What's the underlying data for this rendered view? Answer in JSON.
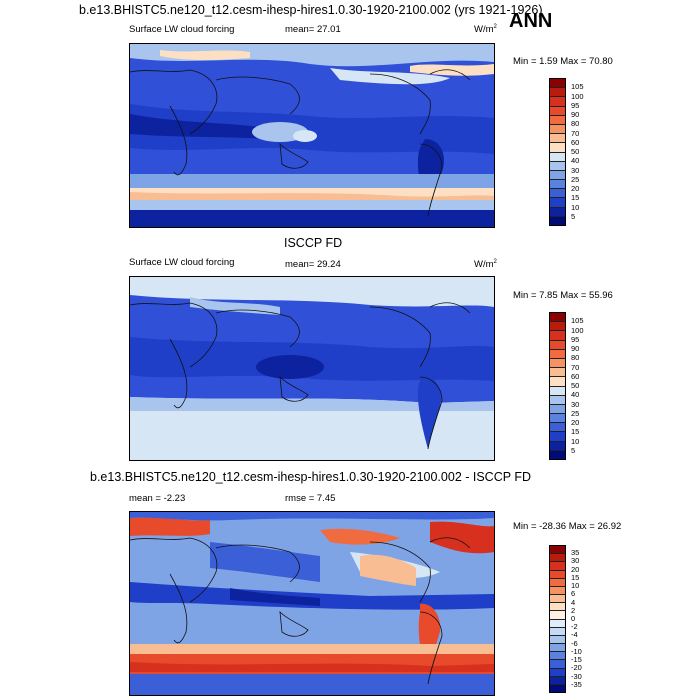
{
  "season": "ANN",
  "panels": [
    {
      "title": "b.e13.BHISTC5.ne120_t12.cesm-ihesp-hires1.0.30-1920-2100.002 (yrs 1921-1926)",
      "left": "Surface LW cloud forcing",
      "stat": "mean=  27.01",
      "units": "W/m",
      "units_sup": "2",
      "minmax": "Min =   1.59 Max =  70.80",
      "cbar_labels": [
        "105",
        "100",
        "95",
        "90",
        "80",
        "70",
        "60",
        "50",
        "40",
        "30",
        "25",
        "20",
        "15",
        "10",
        "5"
      ],
      "cbar_colors": [
        "#8b0000",
        "#b71c0c",
        "#d7301f",
        "#e84a2c",
        "#f06b40",
        "#f59262",
        "#f9bd94",
        "#fde0c4",
        "#d7e6f5",
        "#a9c5ee",
        "#7fa4e6",
        "#5b82de",
        "#3a5fd6",
        "#1f3fc8",
        "#0c229f",
        "#000a78"
      ]
    },
    {
      "title": "ISCCP FD",
      "left": "Surface LW cloud forcing",
      "stat": "mean=  29.24",
      "units": "W/m",
      "units_sup": "2",
      "minmax": "Min =   7.85 Max =  55.96",
      "cbar_labels": [
        "105",
        "100",
        "95",
        "90",
        "80",
        "70",
        "60",
        "50",
        "40",
        "30",
        "25",
        "20",
        "15",
        "10",
        "5"
      ],
      "cbar_colors": [
        "#8b0000",
        "#b71c0c",
        "#d7301f",
        "#e84a2c",
        "#f06b40",
        "#f59262",
        "#f9bd94",
        "#fde0c4",
        "#d7e6f5",
        "#a9c5ee",
        "#7fa4e6",
        "#5b82de",
        "#3a5fd6",
        "#1f3fc8",
        "#0c229f",
        "#000a78"
      ]
    },
    {
      "title": "b.e13.BHISTC5.ne120_t12.cesm-ihesp-hires1.0.30-1920-2100.002 - ISCCP FD",
      "left": "mean =  -2.23",
      "stat": "rmse =   7.45",
      "minmax": "Min = -28.36 Max =  26.92",
      "cbar_labels": [
        "35",
        "30",
        "20",
        "15",
        "10",
        "6",
        "4",
        "2",
        "0",
        "-2",
        "-4",
        "-6",
        "-10",
        "-15",
        "-20",
        "-30",
        "-35"
      ],
      "cbar_colors": [
        "#8b0000",
        "#b71c0c",
        "#d7301f",
        "#e84a2c",
        "#f06b40",
        "#f59262",
        "#f9bd94",
        "#fde0c4",
        "#fff0e6",
        "#e0ecfb",
        "#c6d9f6",
        "#a9c5ee",
        "#7fa4e6",
        "#5b82de",
        "#3a5fd6",
        "#1f3fc8",
        "#0c229f",
        "#000a78"
      ]
    }
  ]
}
